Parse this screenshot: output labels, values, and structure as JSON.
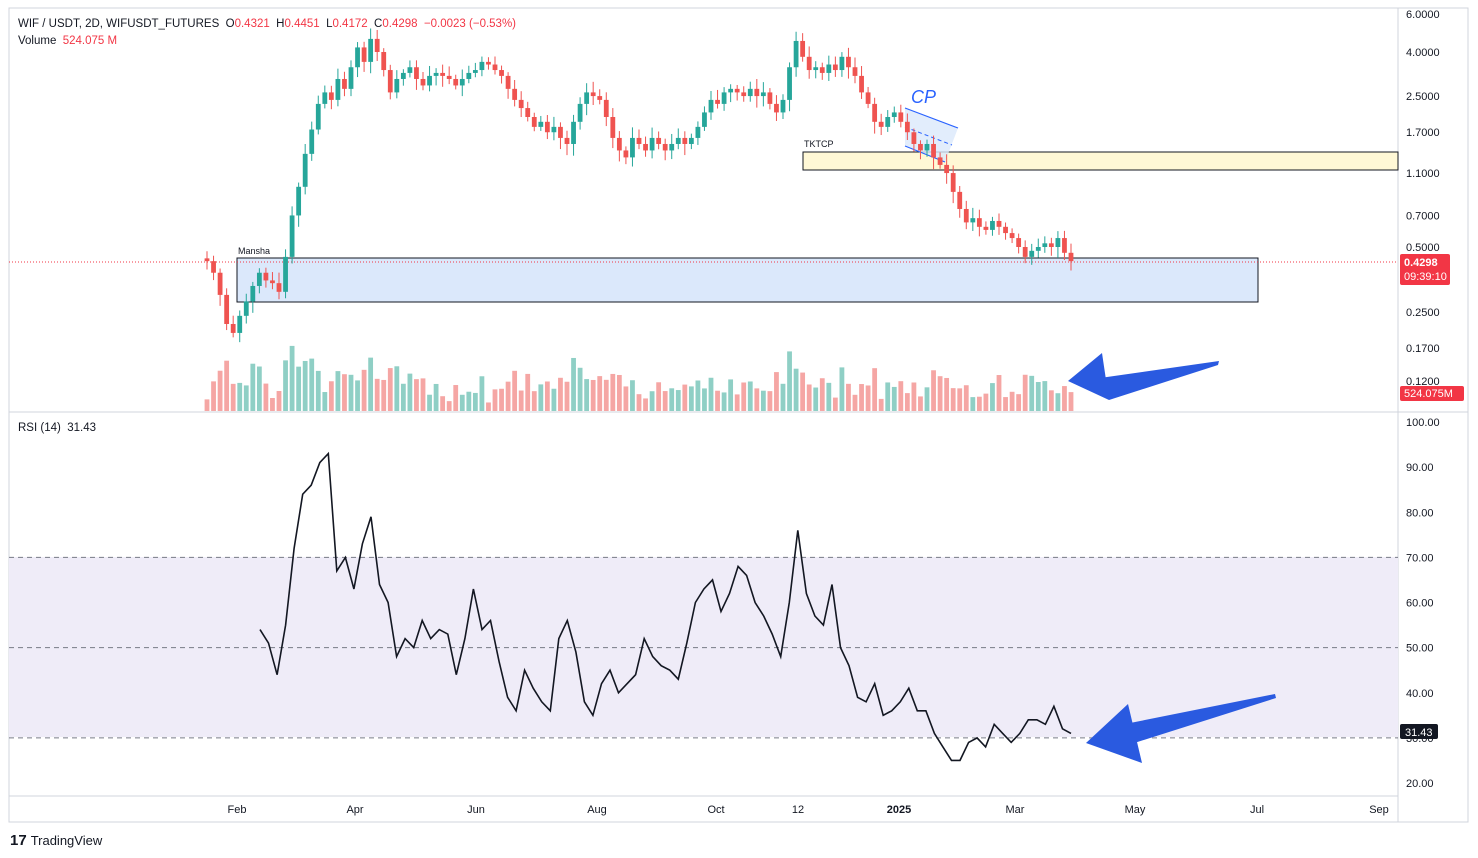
{
  "header": {
    "symbol": "WIF / USDT, 2D, WIFUSDT_FUTURES",
    "o_label": "O",
    "o": "0.4321",
    "h_label": "H",
    "h": "0.4451",
    "l_label": "L",
    "l": "0.4172",
    "c_label": "C",
    "c": "0.4298",
    "change": "−0.0023 (−0.53%)",
    "volume_label": "Volume",
    "volume": "524.075 M",
    "rsi_label": "RSI (14)",
    "rsi": "31.43"
  },
  "price_badge": {
    "value": "0.4298",
    "timer": "09:39:10"
  },
  "volume_badge": "524.075M",
  "rsi_badge": "31.43",
  "branding": "TradingView",
  "annotations": {
    "cp": "CP",
    "tktcp": "TKTCP",
    "mansha": "Mansha"
  },
  "colors": {
    "up": "#26a69a",
    "down": "#ef5350",
    "volume_up": "#8fcfc5",
    "volume_down": "#f5a6a4",
    "arrow": "#2a5ae0",
    "zone_blue": "#dbe8fb",
    "zone_yellow": "#fff8d6",
    "rsi_band": "#efecf8"
  },
  "chart_data": [
    {
      "type": "candlestick",
      "scale": "log",
      "price_ticks": [
        "6.0000",
        "4.0000",
        "2.5000",
        "1.7000",
        "1.1000",
        "0.7000",
        "0.5000",
        "0.2500",
        "0.1700",
        "0.1200"
      ],
      "x_ticks": [
        "Feb",
        "Apr",
        "Jun",
        "Aug",
        "Oct",
        "12",
        "2025",
        "Mar",
        "May",
        "Jul",
        "Sep"
      ],
      "current_price": 0.4298,
      "close_series_approx": [
        0.43,
        0.38,
        0.3,
        0.22,
        0.2,
        0.24,
        0.28,
        0.33,
        0.38,
        0.35,
        0.34,
        0.31,
        0.45,
        0.7,
        0.95,
        1.35,
        1.75,
        2.3,
        2.6,
        2.4,
        3.0,
        2.7,
        3.4,
        4.2,
        3.6,
        4.6,
        4.0,
        3.3,
        2.6,
        3.0,
        3.2,
        3.4,
        3.0,
        2.8,
        3.1,
        3.2,
        3.1,
        3.0,
        2.8,
        3.0,
        3.2,
        3.3,
        3.6,
        3.5,
        3.3,
        3.1,
        2.7,
        2.4,
        2.2,
        2.0,
        1.8,
        1.9,
        1.7,
        1.8,
        1.6,
        1.5,
        1.9,
        2.3,
        2.6,
        2.5,
        2.4,
        2.0,
        1.6,
        1.4,
        1.3,
        1.6,
        1.5,
        1.4,
        1.6,
        1.5,
        1.4,
        1.5,
        1.6,
        1.5,
        1.6,
        1.8,
        2.1,
        2.4,
        2.3,
        2.6,
        2.7,
        2.6,
        2.5,
        2.7,
        2.5,
        2.6,
        2.3,
        2.1,
        2.4,
        3.4,
        4.5,
        3.8,
        3.3,
        3.4,
        3.2,
        3.5,
        3.3,
        3.8,
        3.4,
        3.1,
        2.6,
        2.3,
        1.9,
        1.8,
        2.0,
        2.1,
        1.9,
        1.7,
        1.5,
        1.4,
        1.5,
        1.3,
        1.2,
        1.1,
        0.9,
        0.75,
        0.65,
        0.68,
        0.62,
        0.6,
        0.66,
        0.62,
        0.58,
        0.55,
        0.5,
        0.45,
        0.48,
        0.5,
        0.52,
        0.5,
        0.55,
        0.47,
        0.43
      ],
      "volume_last": "524.075M",
      "zones": [
        {
          "label": "Mansha",
          "from": 0.33,
          "to": 0.43
        },
        {
          "label": "TKTCP",
          "from": 1.05,
          "to": 1.38
        }
      ],
      "pattern": {
        "label": "CP",
        "type": "descending channel"
      }
    },
    {
      "type": "line",
      "series": [
        {
          "values": [
            54,
            51,
            44,
            55,
            72,
            84,
            86,
            91,
            93,
            67,
            70,
            63,
            73,
            79,
            64,
            60,
            48,
            52,
            50,
            56,
            52,
            54,
            53,
            44,
            52,
            63,
            54,
            56,
            47,
            39,
            36,
            45,
            41,
            38,
            36,
            52,
            56,
            49,
            38,
            35,
            42,
            45,
            40,
            42,
            44,
            52,
            48,
            46,
            45,
            43,
            51,
            60,
            63,
            65,
            58,
            62,
            68,
            66,
            60,
            57,
            53,
            48,
            60,
            76,
            62,
            57,
            55,
            64,
            50,
            46,
            39,
            38,
            42,
            35,
            36,
            38,
            41,
            36,
            36,
            31,
            28,
            25,
            25,
            29,
            30,
            28,
            33,
            31,
            29,
            31,
            34,
            34,
            33,
            37,
            32,
            31
          ]
        }
      ],
      "y_ticks": [
        "100.00",
        "90.00",
        "80.00",
        "70.00",
        "60.00",
        "50.00",
        "40.00",
        "30.00",
        "20.00"
      ],
      "ylim": [
        16,
        100
      ],
      "levels": [
        70,
        50,
        30
      ],
      "current": 31.43
    }
  ]
}
